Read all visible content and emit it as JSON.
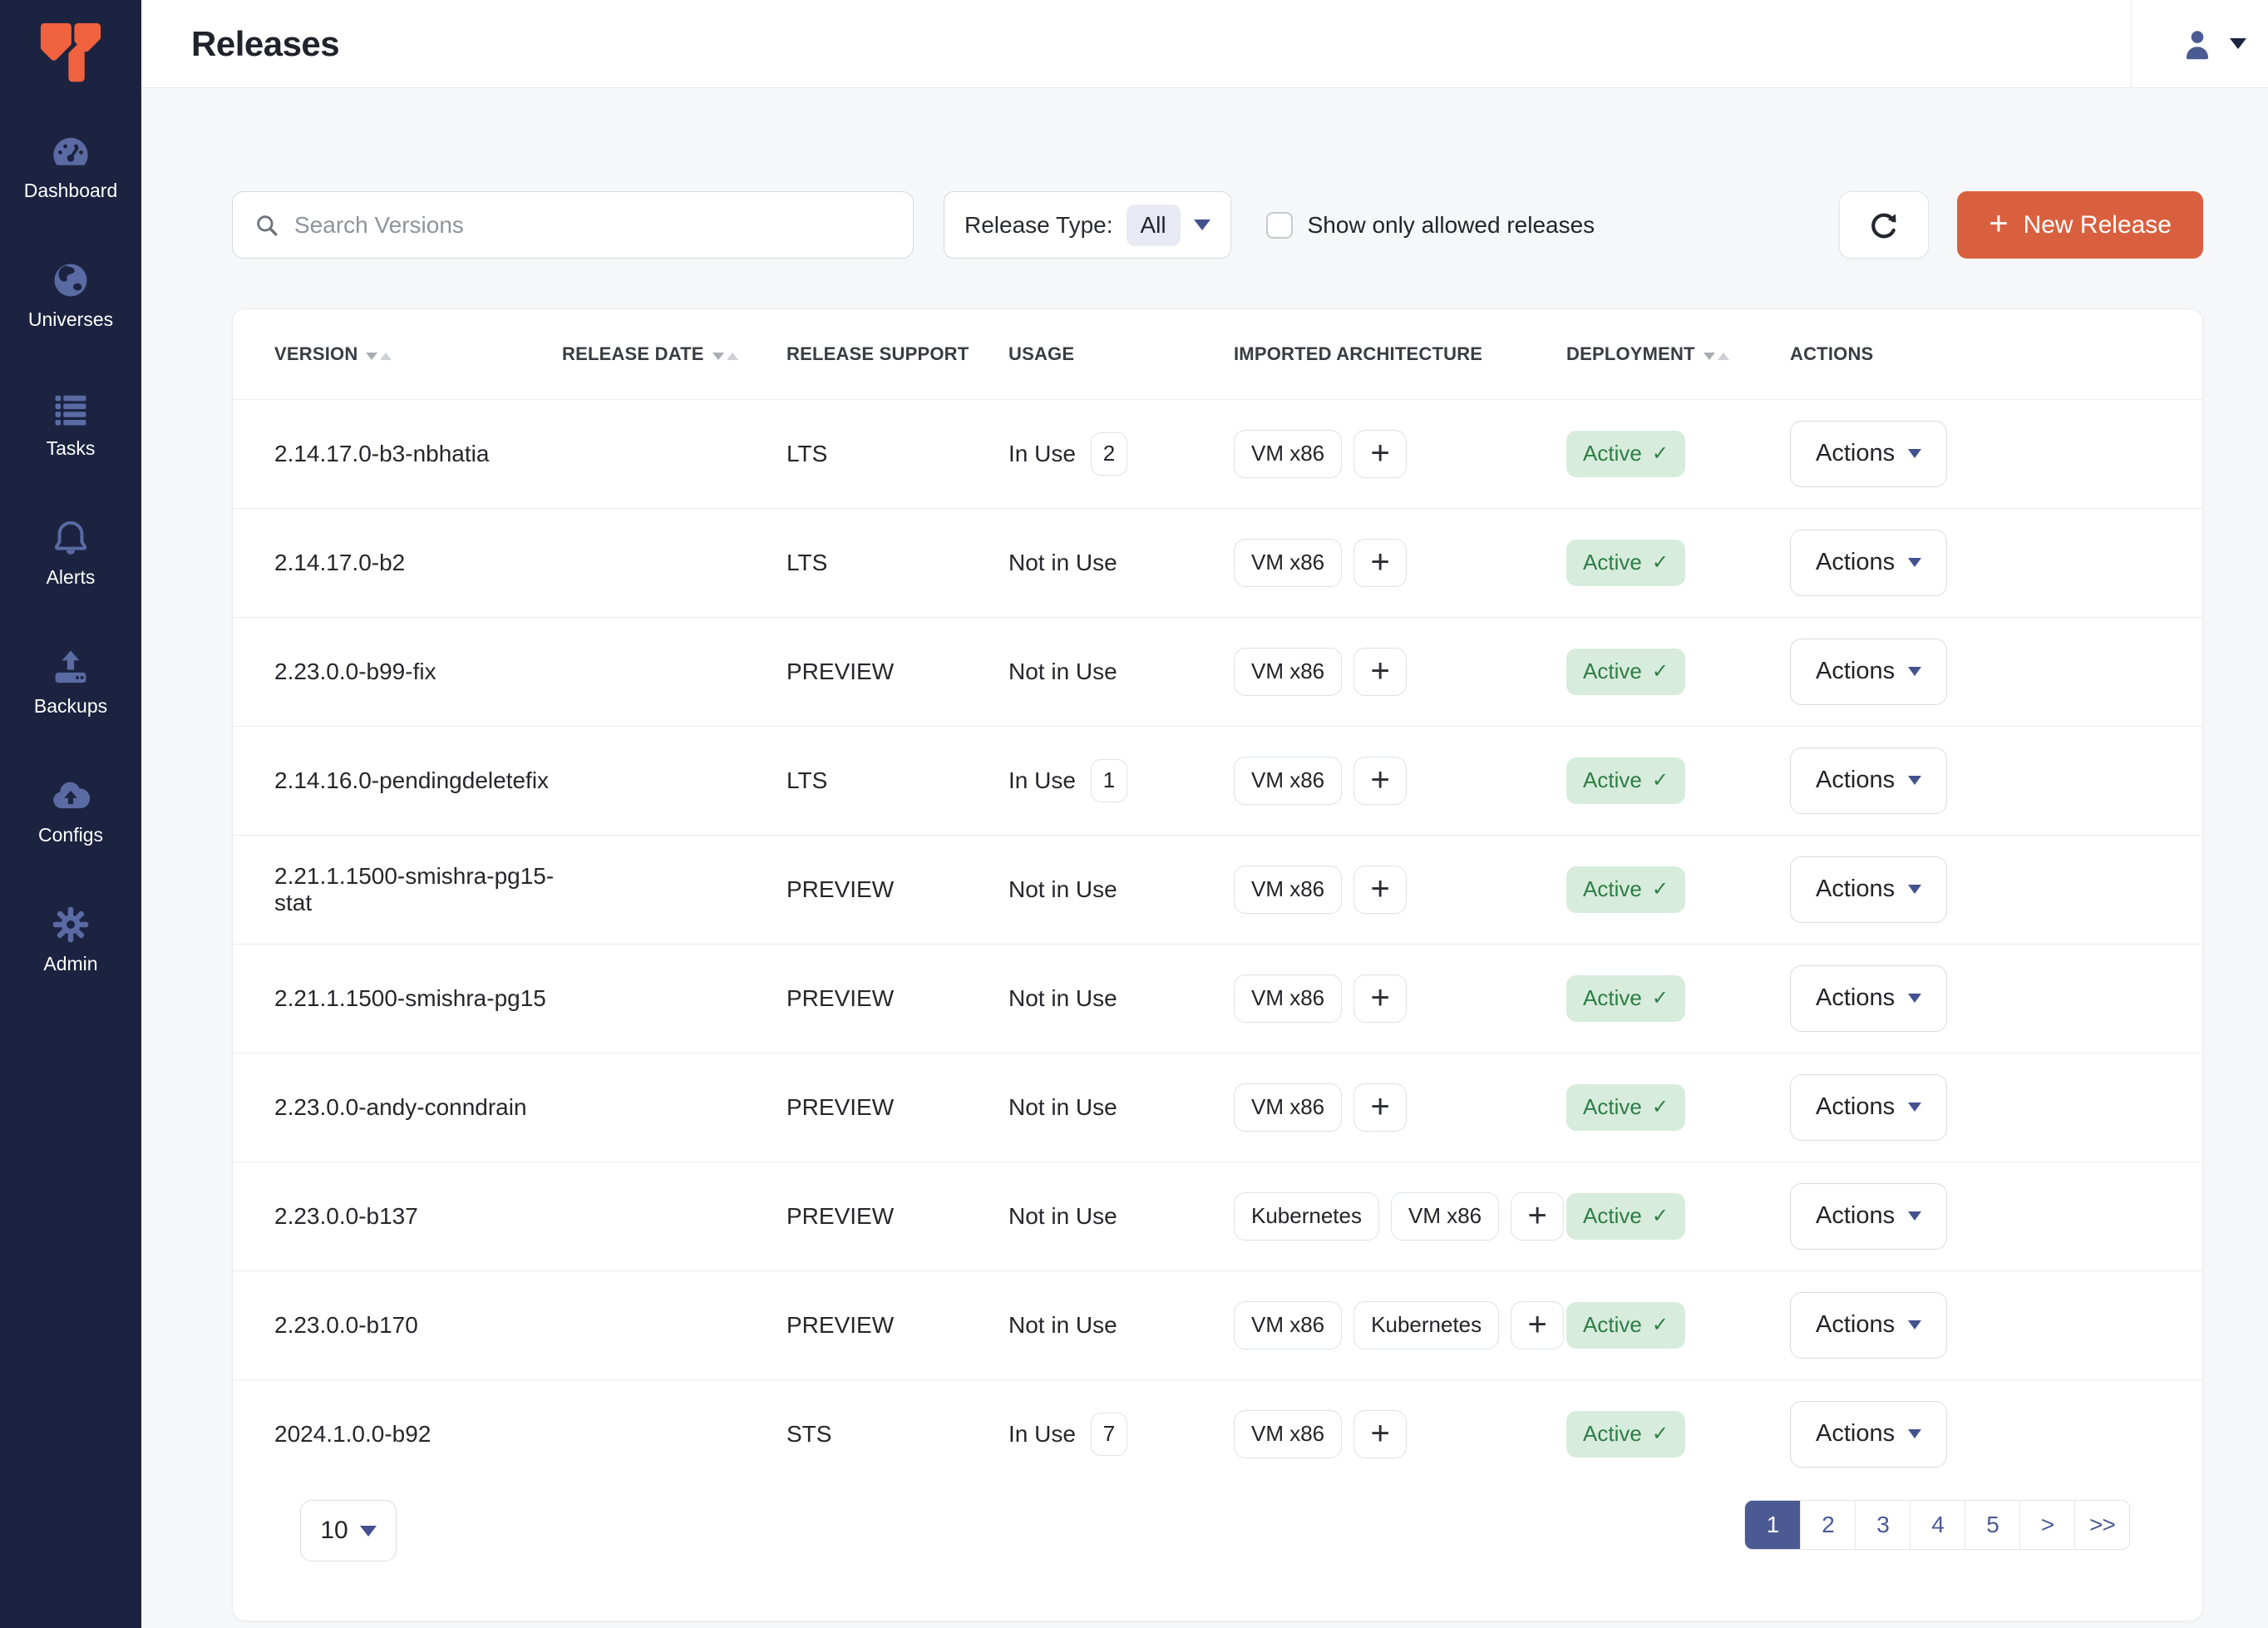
{
  "app": {
    "title": "Releases"
  },
  "sidebar": {
    "logo_icon": "yugabyte-logo-icon",
    "items": [
      {
        "label": "Dashboard",
        "icon": "dashboard-gauge-icon"
      },
      {
        "label": "Universes",
        "icon": "globe-icon"
      },
      {
        "label": "Tasks",
        "icon": "task-list-icon"
      },
      {
        "label": "Alerts",
        "icon": "bell-icon"
      },
      {
        "label": "Backups",
        "icon": "backup-upload-icon"
      },
      {
        "label": "Configs",
        "icon": "cloud-upload-icon"
      },
      {
        "label": "Admin",
        "icon": "gear-icon"
      }
    ]
  },
  "header": {
    "user_icon": "user-icon",
    "user_caret_icon": "chevron-down-icon"
  },
  "toolbar": {
    "search_placeholder": "Search Versions",
    "release_type_label": "Release Type:",
    "release_type_value": "All",
    "show_allowed_label": "Show only allowed releases",
    "refresh_icon": "refresh-icon",
    "new_release_label": "New Release",
    "new_release_plus": "+"
  },
  "table": {
    "columns": [
      {
        "label": "VERSION",
        "sortable": true
      },
      {
        "label": "RELEASE DATE",
        "sortable": true
      },
      {
        "label": "RELEASE SUPPORT",
        "sortable": false
      },
      {
        "label": "USAGE",
        "sortable": false
      },
      {
        "label": "IMPORTED ARCHITECTURE",
        "sortable": false
      },
      {
        "label": "DEPLOYMENT",
        "sortable": true
      },
      {
        "label": "ACTIONS",
        "sortable": false
      }
    ],
    "add_architecture_label": "+",
    "deployment_check_glyph": "✓",
    "actions_label": "Actions",
    "rows": [
      {
        "version": "2.14.17.0-b3-nbhatia",
        "release_date": "",
        "support": "LTS",
        "usage": "In Use",
        "usage_count": "2",
        "architectures": [
          "VM x86"
        ],
        "deployment": "Active"
      },
      {
        "version": "2.14.17.0-b2",
        "release_date": "",
        "support": "LTS",
        "usage": "Not in Use",
        "usage_count": null,
        "architectures": [
          "VM x86"
        ],
        "deployment": "Active"
      },
      {
        "version": "2.23.0.0-b99-fix",
        "release_date": "",
        "support": "PREVIEW",
        "usage": "Not in Use",
        "usage_count": null,
        "architectures": [
          "VM x86"
        ],
        "deployment": "Active"
      },
      {
        "version": "2.14.16.0-pendingdeletefix",
        "release_date": "",
        "support": "LTS",
        "usage": "In Use",
        "usage_count": "1",
        "architectures": [
          "VM x86"
        ],
        "deployment": "Active"
      },
      {
        "version": "2.21.1.1500-smishra-pg15-stat",
        "release_date": "",
        "support": "PREVIEW",
        "usage": "Not in Use",
        "usage_count": null,
        "architectures": [
          "VM x86"
        ],
        "deployment": "Active"
      },
      {
        "version": "2.21.1.1500-smishra-pg15",
        "release_date": "",
        "support": "PREVIEW",
        "usage": "Not in Use",
        "usage_count": null,
        "architectures": [
          "VM x86"
        ],
        "deployment": "Active"
      },
      {
        "version": "2.23.0.0-andy-conndrain",
        "release_date": "",
        "support": "PREVIEW",
        "usage": "Not in Use",
        "usage_count": null,
        "architectures": [
          "VM x86"
        ],
        "deployment": "Active"
      },
      {
        "version": "2.23.0.0-b137",
        "release_date": "",
        "support": "PREVIEW",
        "usage": "Not in Use",
        "usage_count": null,
        "architectures": [
          "Kubernetes",
          "VM x86"
        ],
        "deployment": "Active"
      },
      {
        "version": "2.23.0.0-b170",
        "release_date": "",
        "support": "PREVIEW",
        "usage": "Not in Use",
        "usage_count": null,
        "architectures": [
          "VM x86",
          "Kubernetes"
        ],
        "deployment": "Active"
      },
      {
        "version": "2024.1.0.0-b92",
        "release_date": "",
        "support": "STS",
        "usage": "In Use",
        "usage_count": "7",
        "architectures": [
          "VM x86"
        ],
        "deployment": "Active"
      }
    ]
  },
  "pagination": {
    "page_size": "10",
    "pages": [
      "1",
      "2",
      "3",
      "4",
      "5",
      ">",
      ">>"
    ],
    "active_page": "1"
  },
  "colors": {
    "sidebar_bg": "#1c2340",
    "logo_orange": "#f0623e",
    "accent_orange": "#d9603f",
    "sidebar_icon": "#5a6aa3",
    "active_badge_bg": "#d7ecdc",
    "active_badge_text": "#2e7d45",
    "pagination_active": "#4b5a93",
    "link_indigo": "#44518f"
  }
}
